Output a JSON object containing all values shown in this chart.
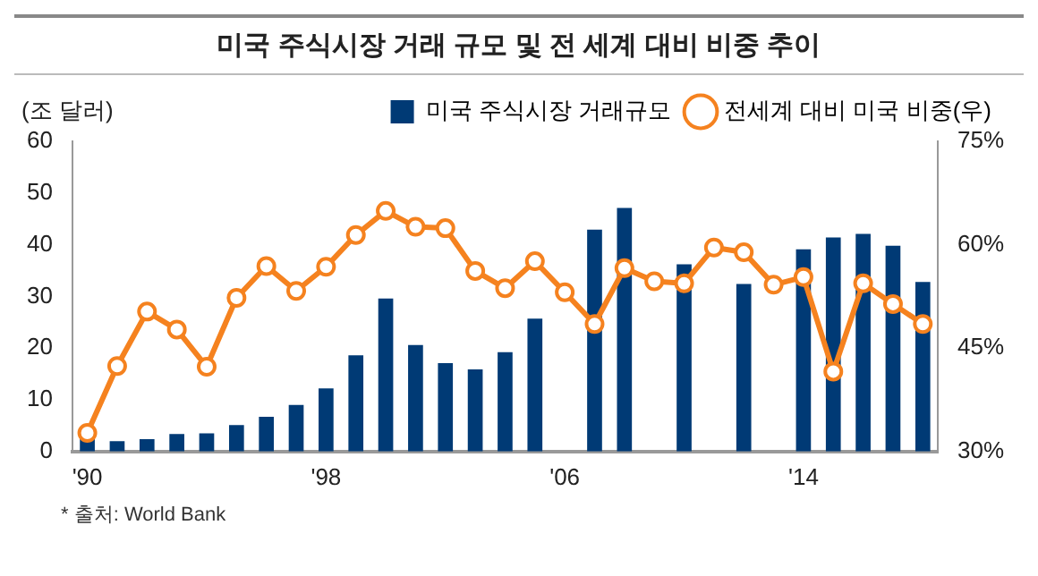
{
  "chart_data": {
    "type": "bar",
    "title": "미국 주식시장 거래 규모 및 전 세계 대비 비중 추이",
    "ylabel": "(조 달러)",
    "categories": [
      "'90",
      null,
      null,
      null,
      null,
      null,
      null,
      null,
      "'98",
      null,
      null,
      null,
      null,
      null,
      null,
      null,
      "'06",
      null,
      null,
      null,
      null,
      null,
      null,
      null,
      "'14",
      null,
      null,
      null,
      null
    ],
    "series": [
      {
        "name": "미국 주식시장 거래규모",
        "color": "#003a75",
        "values": [
          2.4,
          2.0,
          2.4,
          3.4,
          3.5,
          5.1,
          6.7,
          9.0,
          12.2,
          18.6,
          29.6,
          20.6,
          17.1,
          15.9,
          19.2,
          25.7,
          null,
          42.9,
          47.1,
          null,
          36.2,
          null,
          32.4,
          null,
          39.1,
          41.4,
          42.1,
          39.8,
          32.8
        ]
      },
      {
        "name": "전세계 대비 미국 비중(우)",
        "type": "line",
        "axis": "y2",
        "color": "#f5821f",
        "marker": "circle",
        "values": [
          32.7,
          42.4,
          50.3,
          47.7,
          42.3,
          52.3,
          56.9,
          53.3,
          56.8,
          61.4,
          64.9,
          62.6,
          62.4,
          56.2,
          53.7,
          57.6,
          53.1,
          48.5,
          56.6,
          54.7,
          54.4,
          59.6,
          58.9,
          54.2,
          55.3,
          41.6,
          54.4,
          51.4,
          48.5
        ]
      }
    ],
    "ylim": [
      0,
      60
    ],
    "yticks": [
      0,
      10,
      20,
      30,
      40,
      50,
      60
    ],
    "y2lim": [
      30,
      75
    ],
    "y2ticks": [
      {
        "value": 30,
        "label": "30%"
      },
      {
        "value": 45,
        "label": "45%"
      },
      {
        "value": 60,
        "label": "60%"
      },
      {
        "value": 75,
        "label": "75%"
      }
    ],
    "grid": false,
    "legend": "top",
    "annotations": [
      "* 출처: World Bank"
    ]
  }
}
